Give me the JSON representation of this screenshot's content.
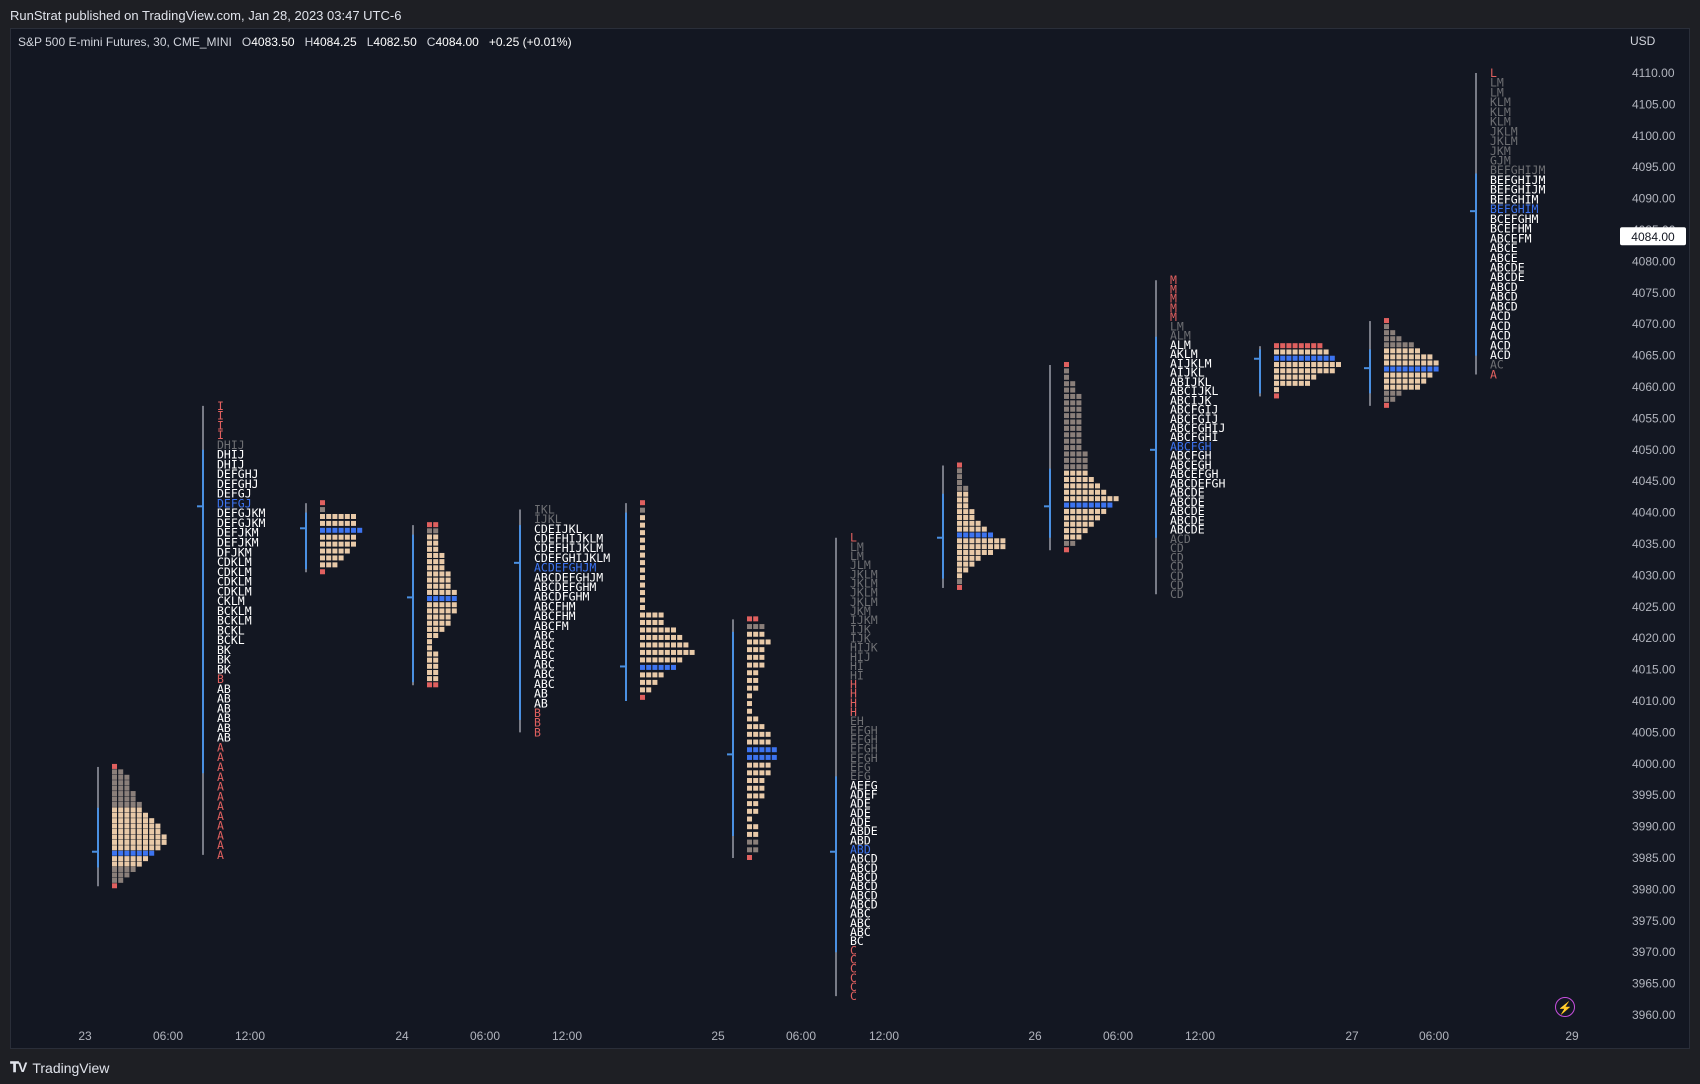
{
  "header": {
    "published": "RunStrat published on TradingView.com, Jan 28, 2023 03:47 UTC-6"
  },
  "legend": {
    "symbol": "S&P 500 E-mini Futures, 30, CME_MINI",
    "open_label": "O",
    "open": "4083.50",
    "high_label": "H",
    "high": "4084.25",
    "low_label": "L",
    "low": "4082.50",
    "close_label": "C",
    "close": "4084.00",
    "change": "+0.25 (+0.01%)"
  },
  "currency": "USD",
  "footer": {
    "brand": "TradingView",
    "logo": "tradingview-logo-icon"
  },
  "colors": {
    "background": "#131722",
    "letters_white": "#ffffff",
    "letters_gray": "#6e6f73",
    "letters_red": "#e0605f",
    "poc_blue": "#3d74f0",
    "ib_green": "#4caf50",
    "tpo_tan": "#e8c9a8",
    "tpo_gray": "#8a7f7a",
    "value_area_blue": "#4a90e2",
    "price_tag_bg": "#ffffff",
    "alert_icon": "#c84fe0"
  },
  "chart_data": {
    "type": "market-profile (TPO)",
    "title": "S&P 500 E-mini Futures, 30, CME_MINI",
    "ylim": [
      3956,
      4114
    ],
    "y_ticks": [
      3960,
      3965,
      3970,
      3975,
      3980,
      3985,
      3990,
      3995,
      4000,
      4005,
      4010,
      4015,
      4020,
      4025,
      4030,
      4035,
      4040,
      4045,
      4050,
      4055,
      4060,
      4065,
      4070,
      4075,
      4080,
      4085,
      4090,
      4095,
      4100,
      4105,
      4110
    ],
    "y_tick_labels": [
      "3960.00",
      "3965.00",
      "3970.00",
      "3975.00",
      "3980.00",
      "3985.00",
      "3990.00",
      "3995.00",
      "4000.00",
      "4005.00",
      "4010.00",
      "4015.00",
      "4020.00",
      "4025.00",
      "4030.00",
      "4035.00",
      "4040.00",
      "4045.00",
      "4050.00",
      "4055.00",
      "4060.00",
      "4065.00",
      "4070.00",
      "4075.00",
      "4080.00",
      "4085.00",
      "4090.00",
      "4095.00",
      "4100.00",
      "4105.00",
      "4110.00"
    ],
    "x_tick_labels": [
      "23",
      "06:00",
      "12:00",
      "24",
      "06:00",
      "12:00",
      "25",
      "06:00",
      "12:00",
      "26",
      "06:00",
      "12:00",
      "27",
      "06:00",
      "29"
    ],
    "last_price": "4084.00",
    "sessions": [
      {
        "kind": "boxes",
        "high": 3999.5,
        "low": 3980.5,
        "poc": 3986,
        "va_high": 3993,
        "va_low": 3983.5,
        "widths": [
          1,
          2,
          3,
          3,
          3,
          4,
          4,
          5,
          5,
          6,
          7,
          8,
          8,
          9,
          9,
          8,
          7,
          6,
          5,
          4,
          3,
          2,
          1
        ]
      },
      {
        "kind": "letters",
        "high": 4057,
        "low": 3985.5,
        "poc": 4041,
        "va_high": 4050,
        "va_low": 3998.5,
        "rows": [
          "I",
          "I",
          "I",
          "I",
          "DHIJ",
          "DHIJ",
          "DHIJ",
          "DEFGHJ",
          "DEFGHJ",
          "DEFGJ",
          "DEFGJ",
          "DEFGJKM",
          "DEFGJKM",
          "DEFJKM",
          "DEFJKM",
          "DFJKM",
          "CDKLM",
          "CDKLM",
          "CDKLM",
          "CDKLM",
          "CKLM",
          "BCKLM",
          "BCKLM",
          "BCKL",
          "BCKL",
          "BK",
          "BK",
          "BK",
          "B",
          "AB",
          "AB",
          "AB",
          "AB",
          "AB",
          "AB",
          "A",
          "A",
          "A",
          "A",
          "A",
          "A",
          "A",
          "A",
          "A",
          "A",
          "A",
          "A"
        ]
      },
      {
        "kind": "boxes",
        "high": 4041.5,
        "low": 4030.5,
        "poc": 4037.5,
        "va_high": 4040,
        "va_low": 4031,
        "widths": [
          1,
          1,
          6,
          6,
          7,
          6,
          6,
          5,
          4,
          3,
          1
        ]
      },
      {
        "kind": "boxes",
        "high": 4038,
        "low": 4012.5,
        "poc": 4026.5,
        "va_high": 4036.5,
        "va_low": 4013,
        "widths": [
          2,
          2,
          2,
          2,
          2,
          3,
          3,
          3,
          4,
          4,
          4,
          5,
          5,
          5,
          5,
          4,
          4,
          3,
          2,
          1,
          1,
          2,
          2,
          2,
          2,
          2,
          2
        ]
      },
      {
        "kind": "letters",
        "high": 4040.5,
        "low": 4005,
        "poc": 4032,
        "va_high": 4038,
        "va_low": 4007,
        "rows": [
          "IKL",
          "IJKL",
          "CDEIJKL",
          "CDEFHIJKLM",
          "CDEFHIJKLM",
          "CDEFGHIJKLM",
          "ACDEFGHJM",
          "ABCDEFGHJM",
          "ABCDEFGHM",
          "ABCDFGHM",
          "ABCFHM",
          "ABCFHM",
          "ABCFM",
          "ABC",
          "ABC",
          "ABC",
          "ABC",
          "ABC",
          "ABC",
          "AB",
          "AB",
          "B",
          "B",
          "B"
        ]
      },
      {
        "kind": "boxes",
        "high": 4041.5,
        "low": 4010.5,
        "poc": 4015.5,
        "va_high": 4040,
        "va_low": 4010,
        "widths": [
          1,
          1,
          1,
          1,
          1,
          1,
          1,
          1,
          1,
          1,
          1,
          1,
          1,
          1,
          1,
          4,
          4,
          6,
          7,
          8,
          9,
          7,
          6,
          4,
          3,
          2,
          1
        ]
      },
      {
        "kind": "boxes",
        "high": 4023,
        "low": 3985,
        "poc": 4001.5,
        "va_high": 4021,
        "va_low": 3988.5,
        "widths": [
          2,
          3,
          3,
          4,
          3,
          3,
          3,
          2,
          2,
          2,
          1,
          1,
          1,
          2,
          3,
          4,
          4,
          5,
          5,
          4,
          4,
          3,
          3,
          3,
          2,
          2,
          1,
          2,
          2,
          2,
          2,
          1
        ]
      },
      {
        "kind": "letters",
        "high": 4036,
        "low": 3963,
        "poc": 3986,
        "va_high": 3998,
        "va_low": 3970,
        "rows": [
          "L",
          "LM",
          "LM",
          "JLM",
          "JKLM",
          "JKLM",
          "JKLM",
          "JKLM",
          "JKM",
          "IJKM",
          "IJK",
          "IJK",
          "HIJK",
          "HIJ",
          "HI",
          "HI",
          "H",
          "H",
          "H",
          "H",
          "EH",
          "EFGH",
          "EFGH",
          "EFGH",
          "EFGH",
          "EFG",
          "EFG",
          "AEFG",
          "ADEF",
          "ADE",
          "ADE",
          "ADE",
          "ABDE",
          "ABD",
          "ABD",
          "ABCD",
          "ABCD",
          "ABCD",
          "ABCD",
          "ABCD",
          "ABCD",
          "ABC",
          "ABC",
          "ABC",
          "BC",
          "C",
          "C",
          "C",
          "C",
          "C",
          "C"
        ]
      },
      {
        "kind": "boxes",
        "high": 4047.5,
        "low": 4028,
        "poc": 4036,
        "va_high": 4043,
        "va_low": 4029.5,
        "widths": [
          1,
          1,
          1,
          1,
          2,
          2,
          2,
          2,
          3,
          3,
          4,
          5,
          6,
          8,
          8,
          6,
          4,
          3,
          2,
          1,
          1,
          1
        ]
      },
      {
        "kind": "boxes",
        "high": 4063.5,
        "low": 4034,
        "poc": 4041,
        "va_high": 4047,
        "va_low": 4036,
        "widths": [
          1,
          1,
          1,
          2,
          2,
          3,
          3,
          3,
          3,
          3,
          3,
          3,
          3,
          3,
          4,
          4,
          4,
          4,
          5,
          6,
          7,
          9,
          8,
          7,
          6,
          5,
          4,
          3,
          2,
          1
        ]
      },
      {
        "kind": "letters",
        "high": 4077,
        "low": 4027,
        "poc": 4050,
        "va_high": 4068,
        "va_low": 4036,
        "rows": [
          "M",
          "M",
          "M",
          "M",
          "M",
          "LM",
          "ALM",
          "ALM",
          "AKLM",
          "AIJKLM",
          "AIJKL",
          "ABIJKL",
          "ABCIJKL",
          "ABCIJK",
          "ABCFGIJ",
          "ABCFGIJ",
          "ABCFGHIJ",
          "ABCFGHI",
          "ABCFGH",
          "ABCFGH",
          "ABCEGH",
          "ABCEFGH",
          "ABCDEFGH",
          "ABCDE",
          "ABCDE",
          "ABCDE",
          "ABCDE",
          "ABCDE",
          "ACD",
          "CD",
          "CD",
          "CD",
          "CD",
          "CD",
          "CD"
        ]
      },
      {
        "kind": "boxes",
        "high": 4066.5,
        "low": 4058.5,
        "poc": 4064.5,
        "va_high": 4066,
        "va_low": 4059,
        "widths": [
          8,
          9,
          10,
          11,
          10,
          7,
          6,
          1,
          1
        ]
      },
      {
        "kind": "boxes",
        "high": 4070.5,
        "low": 4057,
        "poc": 4063,
        "va_high": 4066,
        "va_low": 4059,
        "widths": [
          1,
          1,
          2,
          3,
          5,
          6,
          8,
          9,
          9,
          8,
          7,
          6,
          3,
          2,
          1
        ]
      },
      {
        "kind": "letters",
        "high": 4110,
        "low": 4062,
        "poc": 4088,
        "va_high": 4094,
        "va_low": 4065,
        "rows": [
          "L",
          "LM",
          "LM",
          "KLM",
          "KLM",
          "KLM",
          "JKLM",
          "JKLM",
          "JKM",
          "GJM",
          "BEFGHIJM",
          "BEFGHIJM",
          "BEFGHIJM",
          "BEFGHIM",
          "BEFGHIM",
          "BCEFGHM",
          "BCEFHM",
          "ABCEFM",
          "ABCE",
          "ABCE",
          "ABCDE",
          "ABCDE",
          "ABCD",
          "ABCD",
          "ABCD",
          "ACD",
          "ACD",
          "ACD",
          "ACD",
          "ACD",
          "AC",
          "A"
        ]
      }
    ]
  }
}
